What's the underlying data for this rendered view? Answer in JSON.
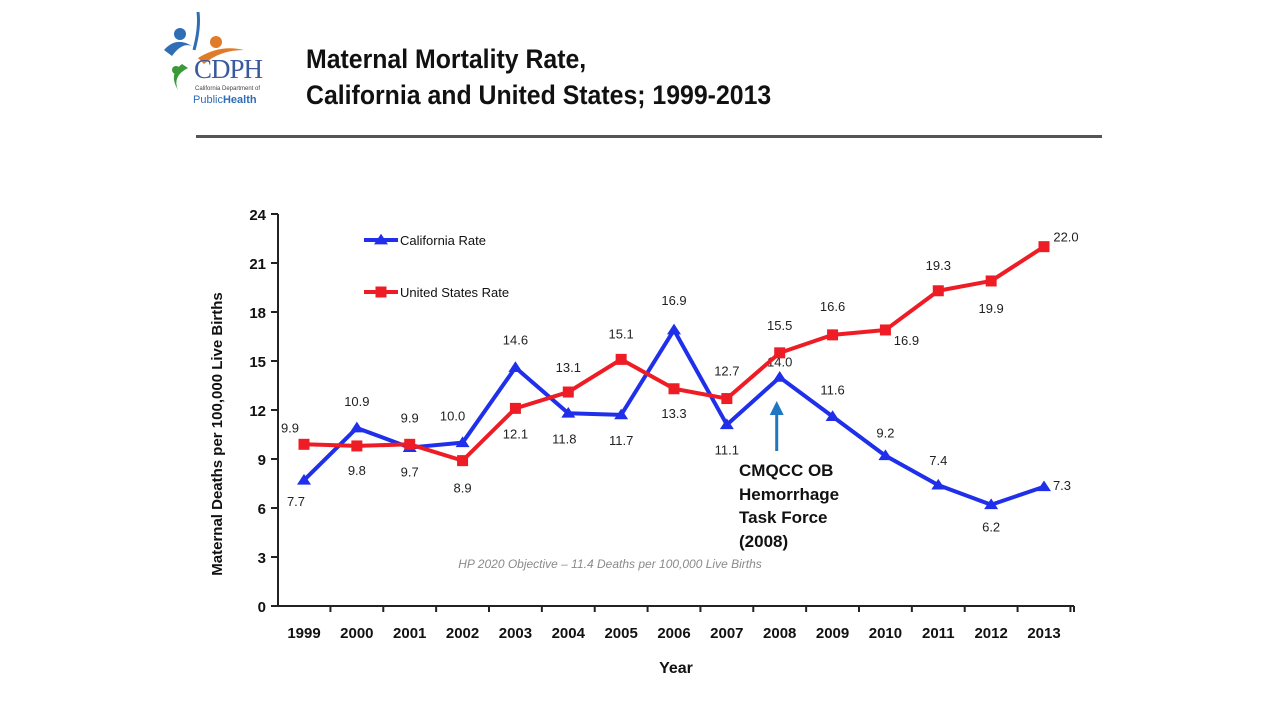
{
  "logo": {
    "abbr": "CDPH",
    "dept_line": "California Department of",
    "public_health": "Public",
    "public_health_bold": "Health"
  },
  "title_line1": "Maternal Mortality Rate,",
  "title_line2": "California and United States; 1999-2013",
  "annotation": "CMQCC OB\nHemorrhage\nTask Force\n(2008)",
  "colors": {
    "california": "#1f2fea",
    "united_states": "#ee1c24",
    "annotation_arrow": "#1f77c4"
  },
  "chart_data": {
    "type": "line",
    "categories": [
      "1999",
      "2000",
      "2001",
      "2002",
      "2003",
      "2004",
      "2005",
      "2006",
      "2007",
      "2008",
      "2009",
      "2010",
      "2011",
      "2012",
      "2013"
    ],
    "series": [
      {
        "name": "California Rate",
        "marker": "triangle",
        "values": [
          7.7,
          10.9,
          9.7,
          10.0,
          14.6,
          11.8,
          11.7,
          16.9,
          11.1,
          14.0,
          11.6,
          9.2,
          7.4,
          6.2,
          7.3
        ],
        "labels": [
          "7.7",
          "10.9",
          "9.7",
          "10.0",
          "14.6",
          "11.8",
          "11.7",
          "16.9",
          "11.1",
          "14.0",
          "11.6",
          "9.2",
          "7.4",
          "6.2",
          "7.3"
        ]
      },
      {
        "name": "United States Rate",
        "marker": "square",
        "values": [
          9.9,
          9.8,
          9.9,
          8.9,
          12.1,
          13.1,
          15.1,
          13.3,
          12.7,
          15.5,
          16.6,
          16.9,
          19.3,
          19.9,
          22.0
        ],
        "labels": [
          "9.9",
          "9.8",
          "9.9",
          "8.9",
          "12.1",
          "13.1",
          "15.1",
          "13.3",
          "12.7",
          "15.5",
          "16.6",
          "16.9",
          "19.3",
          "19.9",
          "22.0"
        ]
      }
    ],
    "xlabel": "Year",
    "ylabel": "Maternal Deaths per 100,000 Live Births",
    "ylim": [
      0,
      24
    ],
    "yticks": [
      0,
      3,
      6,
      9,
      12,
      15,
      18,
      21,
      24
    ],
    "legend_position": "top-left",
    "objective_text": "HP 2020 Objective – 11.4 Deaths per 100,000 Live Births",
    "annotation_year": "2008",
    "grid": false
  }
}
